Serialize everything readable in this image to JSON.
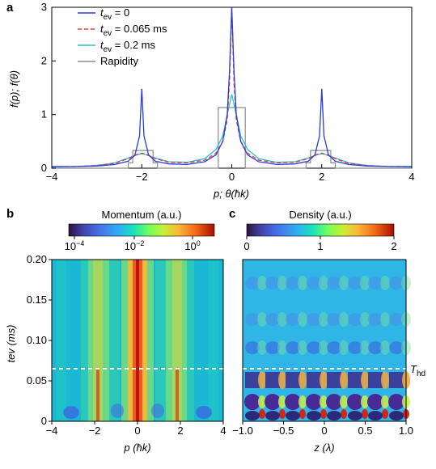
{
  "panels": {
    "a": "a",
    "b": "b",
    "c": "c"
  },
  "chart_data": [
    {
      "panel": "a",
      "type": "line",
      "xlabel": "p; θ(ħk)",
      "ylabel": "f(p); f(θ)",
      "xlim": [
        -4,
        4
      ],
      "ylim": [
        0,
        3
      ],
      "xticks": [
        "−4",
        "−2",
        "0",
        "2",
        "4"
      ],
      "yticks": [
        "0",
        "1",
        "2",
        "3"
      ],
      "legend_position": "top-left",
      "legend": [
        {
          "name": "t",
          "sub": "ev",
          "suffix": " = 0"
        },
        {
          "name": "t",
          "sub": "ev",
          "suffix": " = 0.065 ms"
        },
        {
          "name": "t",
          "sub": "ev",
          "suffix": " = 0.2 ms"
        },
        {
          "name": "Rapidity",
          "sub": "",
          "suffix": ""
        }
      ],
      "series": [
        {
          "name": "t_ev = 0",
          "color": "#2b3bd6",
          "dash": "",
          "x": [
            -4,
            -3.5,
            -3,
            -2.6,
            -2.3,
            -2.15,
            -2.05,
            -2,
            -1.95,
            -1.85,
            -1.7,
            -1.4,
            -1,
            -0.6,
            -0.35,
            -0.2,
            -0.1,
            -0.05,
            0,
            0.05,
            0.1,
            0.2,
            0.35,
            0.6,
            1,
            1.4,
            1.7,
            1.85,
            1.95,
            2,
            2.05,
            2.15,
            2.3,
            2.6,
            3,
            3.5,
            4
          ],
          "y": [
            0.03,
            0.03,
            0.04,
            0.07,
            0.13,
            0.25,
            0.6,
            1.48,
            0.6,
            0.25,
            0.13,
            0.08,
            0.07,
            0.12,
            0.25,
            0.5,
            1.0,
            1.8,
            3.0,
            1.8,
            1.0,
            0.5,
            0.25,
            0.12,
            0.07,
            0.08,
            0.13,
            0.25,
            0.6,
            1.48,
            0.6,
            0.25,
            0.13,
            0.07,
            0.04,
            0.03,
            0.03
          ]
        },
        {
          "name": "t_ev = 0.065 ms",
          "color": "#e8383d",
          "dash": "5,3",
          "x": [
            -4,
            -3.5,
            -3,
            -2.6,
            -2.3,
            -2.1,
            -2,
            -1.9,
            -1.7,
            -1.4,
            -1,
            -0.6,
            -0.35,
            -0.2,
            -0.1,
            -0.05,
            0,
            0.05,
            0.1,
            0.2,
            0.35,
            0.6,
            1,
            1.4,
            1.7,
            1.9,
            2,
            2.1,
            2.3,
            2.6,
            3,
            3.5,
            4
          ],
          "y": [
            0.03,
            0.03,
            0.05,
            0.09,
            0.18,
            0.26,
            0.28,
            0.26,
            0.18,
            0.11,
            0.1,
            0.15,
            0.28,
            0.5,
            0.9,
            1.6,
            3.0,
            1.6,
            0.9,
            0.5,
            0.28,
            0.15,
            0.1,
            0.11,
            0.18,
            0.26,
            0.28,
            0.26,
            0.18,
            0.09,
            0.05,
            0.03,
            0.03
          ]
        },
        {
          "name": "t_ev = 0.2 ms",
          "color": "#27c3c8",
          "dash": "",
          "x": [
            -4,
            -3.5,
            -3,
            -2.6,
            -2.3,
            -2.1,
            -2,
            -1.9,
            -1.7,
            -1.4,
            -1,
            -0.6,
            -0.35,
            -0.2,
            -0.1,
            0,
            0.1,
            0.2,
            0.35,
            0.6,
            1,
            1.4,
            1.7,
            1.9,
            2,
            2.1,
            2.3,
            2.6,
            3,
            3.5,
            4
          ],
          "y": [
            0.02,
            0.03,
            0.05,
            0.1,
            0.19,
            0.25,
            0.27,
            0.25,
            0.19,
            0.12,
            0.11,
            0.18,
            0.35,
            0.6,
            1.0,
            1.38,
            1.0,
            0.6,
            0.35,
            0.18,
            0.11,
            0.12,
            0.19,
            0.25,
            0.27,
            0.25,
            0.19,
            0.1,
            0.05,
            0.03,
            0.02
          ]
        },
        {
          "name": "Rapidity",
          "color": "#8c8c8c",
          "dash": "",
          "x": [
            -4,
            -2.3,
            -2.3,
            -2.2,
            -2.2,
            -1.75,
            -1.75,
            -1.65,
            -1.65,
            -0.3,
            -0.3,
            0.3,
            0.3,
            1.65,
            1.65,
            1.75,
            1.75,
            2.2,
            2.2,
            2.3,
            2.3,
            4
          ],
          "y": [
            0,
            0,
            0.1,
            0.1,
            0.33,
            0.33,
            0.1,
            0.1,
            0,
            0,
            1.13,
            1.13,
            0,
            0,
            0.1,
            0.1,
            0.33,
            0.33,
            0.1,
            0.1,
            0,
            0
          ]
        }
      ]
    },
    {
      "panel": "b",
      "type": "heatmap",
      "colorbar_label": "Momentum (a.u.)",
      "colorbar_ticks": [
        "10−4",
        "10−2",
        "100"
      ],
      "colorbar_scale": "log",
      "colorbar_range": [
        0.0001,
        3
      ],
      "colormap": "jet",
      "xlabel": "p (ħk)",
      "ylabel": "tev (ms)",
      "xlim": [
        -4,
        4
      ],
      "ylim": [
        0,
        0.2
      ],
      "xticks": [
        "−4",
        "−2",
        "0",
        "2",
        "4"
      ],
      "yticks": [
        "0",
        "0.05",
        "0.10",
        "0.15",
        "0.20"
      ],
      "description": "Momentum distribution vs evolution time; bright ridge at p=0, narrow peaks at p=±2 for t_ev near 0 broadening with time.",
      "reference_line": {
        "y": 0.065,
        "style": "dashed",
        "color": "#ffffff"
      }
    },
    {
      "panel": "c",
      "type": "heatmap",
      "colorbar_label": "Density (a.u.)",
      "colorbar_ticks": [
        "0",
        "1",
        "2"
      ],
      "colorbar_range": [
        0,
        2
      ],
      "colormap": "jet",
      "xlabel": "z (λ)",
      "ylabel": "",
      "xlim": [
        -1,
        1
      ],
      "ylim": [
        0,
        0.2
      ],
      "xticks": [
        "−1.0",
        "−0.5",
        "0",
        "0.5",
        "1.0"
      ],
      "description": "Density vs position and time; strong periodic density modulation below T_hd, weaker above.",
      "reference_line": {
        "y": 0.065,
        "style": "dashed",
        "color": "#ffffff",
        "label": "T",
        "label_sub": "hd"
      }
    }
  ]
}
